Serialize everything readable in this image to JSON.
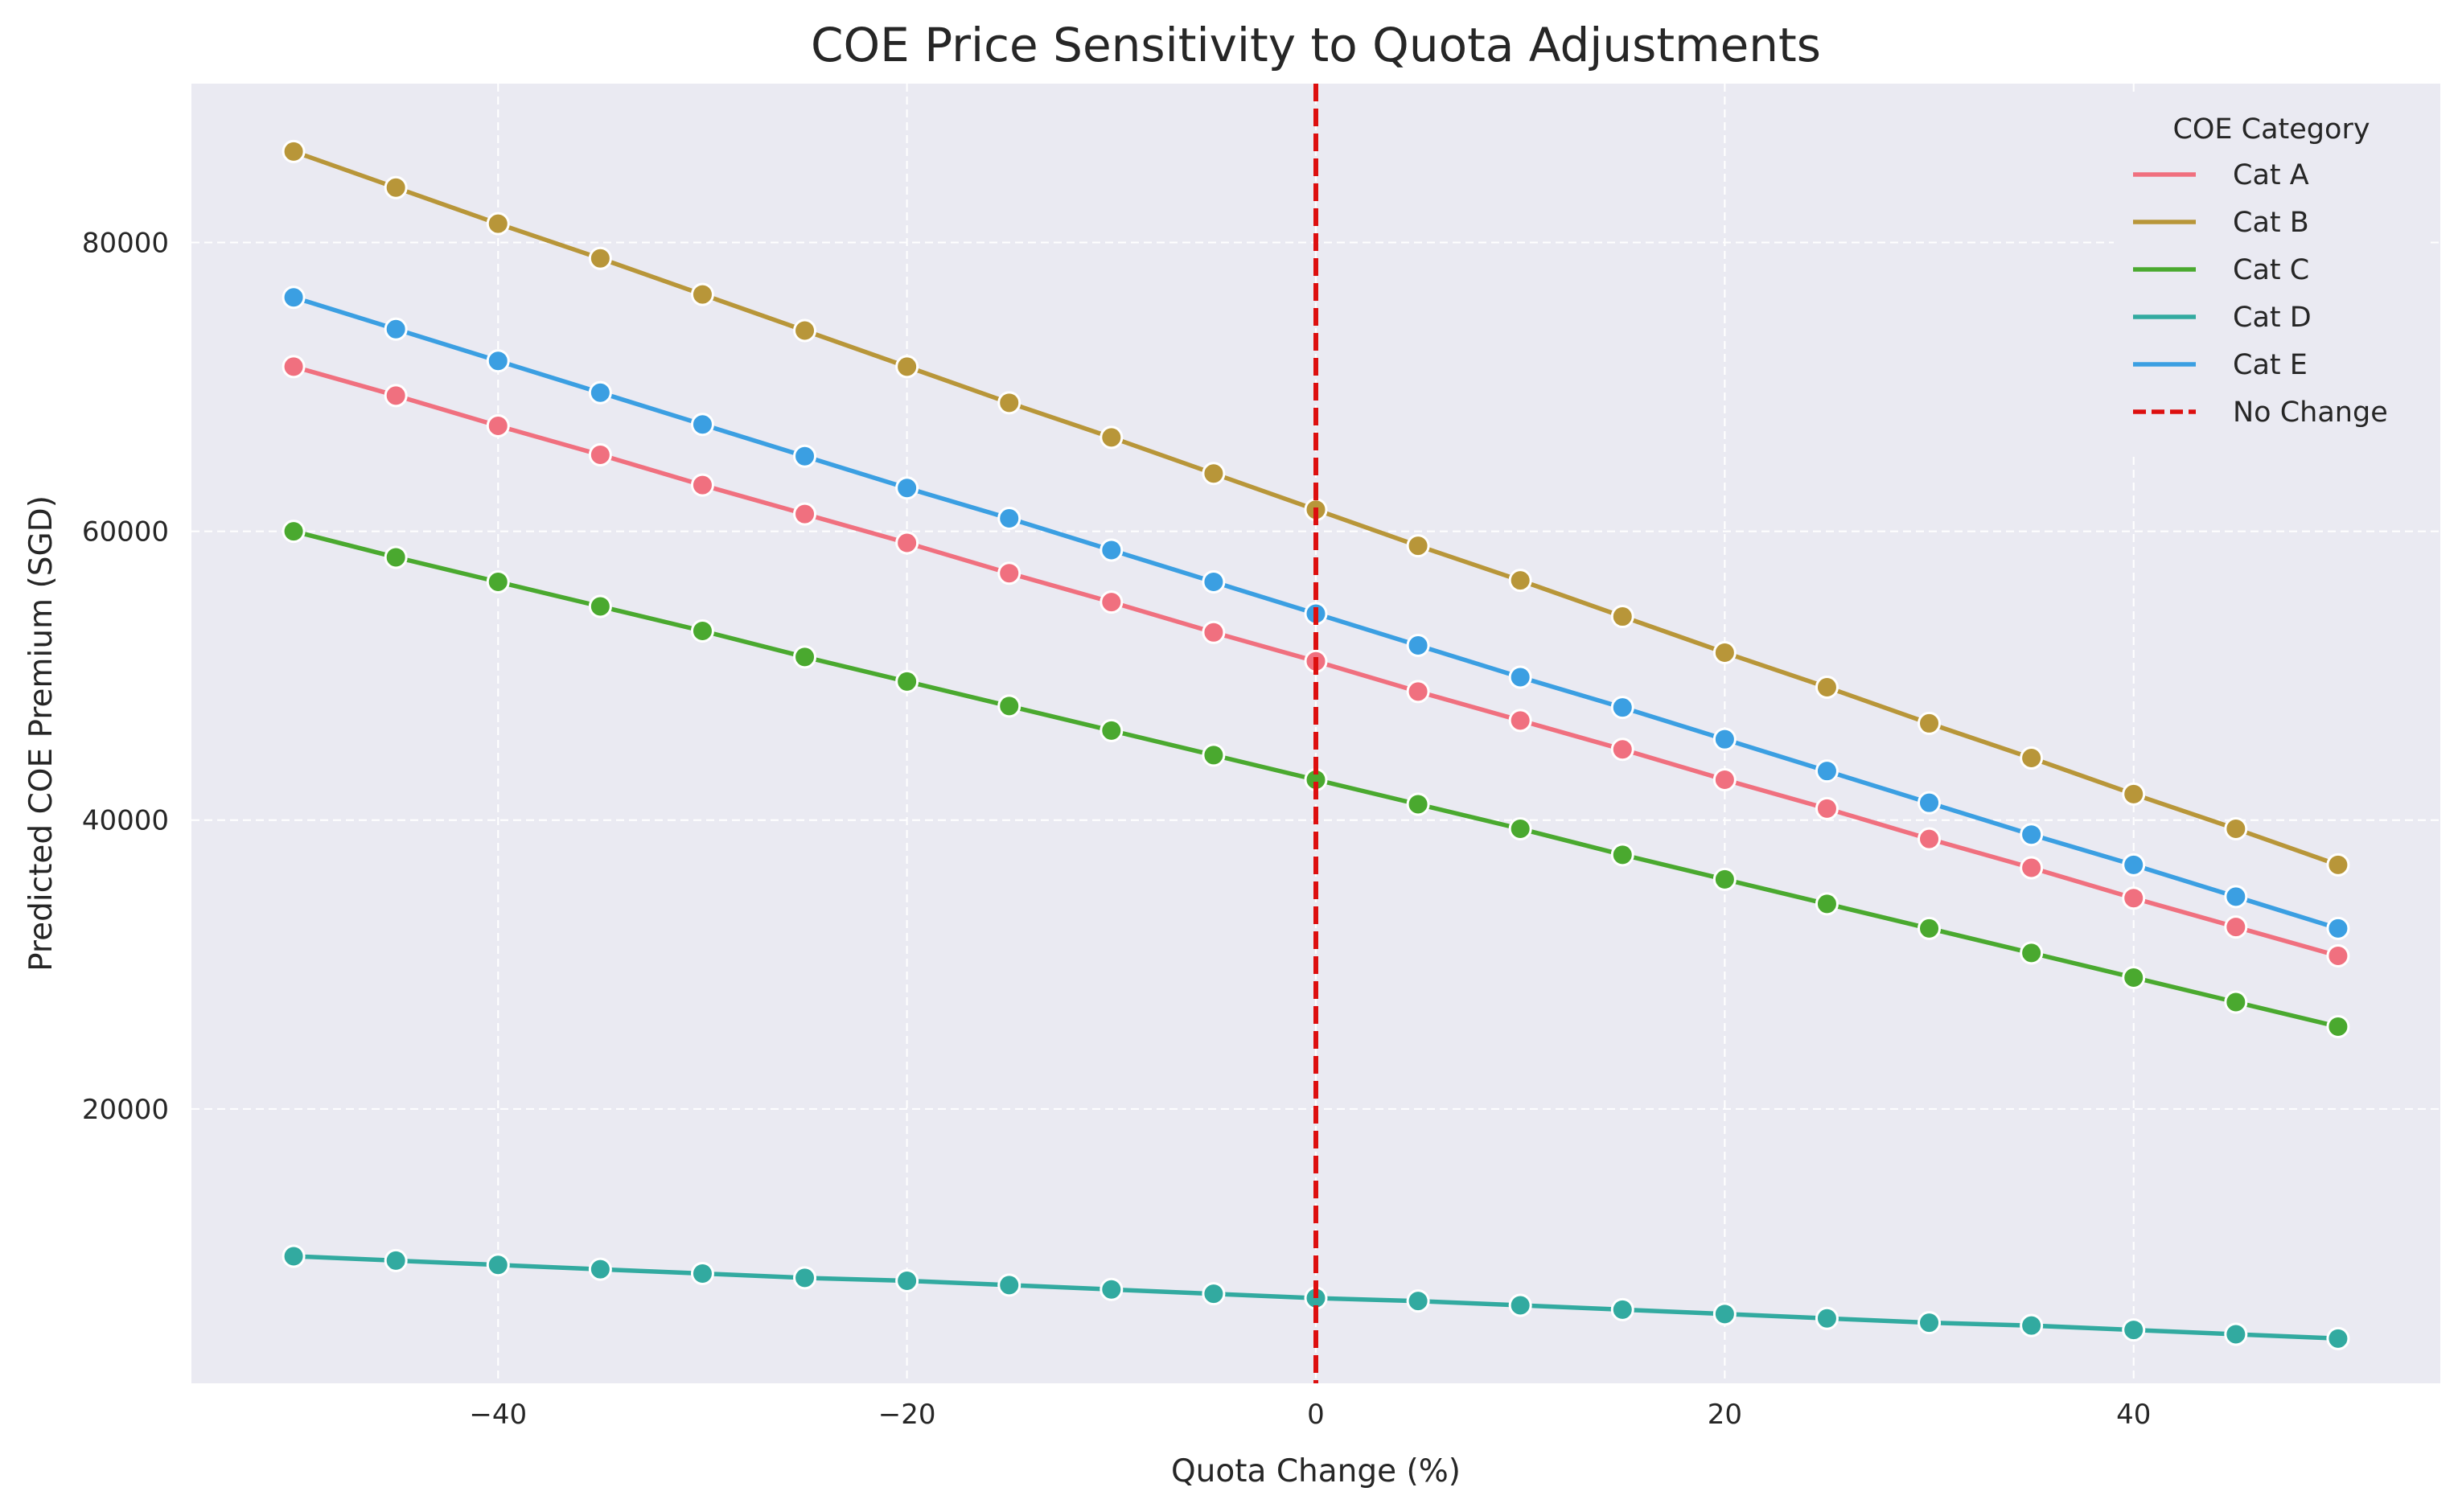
{
  "chart_data": {
    "type": "line",
    "title": "COE Price Sensitivity to Quota Adjustments",
    "xlabel": "Quota Change (%)",
    "ylabel": "Predicted COE Premium (SGD)",
    "xlim": [
      -55,
      55
    ],
    "ylim": [
      1000,
      91000
    ],
    "xticks": [
      -40,
      -20,
      0,
      20,
      40
    ],
    "yticks": [
      20000,
      40000,
      60000,
      80000
    ],
    "xtick_labels": [
      "−40",
      "−20",
      "0",
      "20",
      "40"
    ],
    "ytick_labels": [
      "20000",
      "40000",
      "60000",
      "80000"
    ],
    "grid": true,
    "legend": {
      "title": "COE Category",
      "placement": "top-right"
    },
    "x": [
      -50,
      -45,
      -40,
      -35,
      -30,
      -25,
      -20,
      -15,
      -10,
      -5,
      0,
      5,
      10,
      15,
      20,
      25,
      30,
      35,
      40,
      45,
      50
    ],
    "series": [
      {
        "name": "Cat A",
        "color": "#f0707f",
        "values": [
          71400,
          69400,
          67300,
          65300,
          63200,
          61200,
          59200,
          57100,
          55100,
          53000,
          51000,
          48900,
          46900,
          44900,
          42800,
          40800,
          38700,
          36700,
          34600,
          32600,
          30600
        ]
      },
      {
        "name": "Cat B",
        "color": "#b89639",
        "values": [
          86300,
          83800,
          81300,
          78900,
          76400,
          73900,
          71400,
          68900,
          66500,
          64000,
          61500,
          59000,
          56600,
          54100,
          51600,
          49200,
          46700,
          44300,
          41800,
          39400,
          36900
        ]
      },
      {
        "name": "Cat C",
        "color": "#4aa92f",
        "values": [
          60000,
          58200,
          56500,
          54800,
          53100,
          51300,
          49600,
          47900,
          46200,
          44500,
          42800,
          41100,
          39400,
          37600,
          35900,
          34200,
          32500,
          30800,
          29100,
          27400,
          25700
        ]
      },
      {
        "name": "Cat D",
        "color": "#32aaa0",
        "values": [
          9800,
          9500,
          9200,
          8900,
          8600,
          8300,
          8100,
          7800,
          7500,
          7200,
          6900,
          6700,
          6400,
          6100,
          5800,
          5500,
          5200,
          5000,
          4700,
          4400,
          4100
        ]
      },
      {
        "name": "Cat E",
        "color": "#3b9fe2",
        "values": [
          76200,
          74000,
          71800,
          69600,
          67400,
          65200,
          63000,
          60900,
          58700,
          56500,
          54300,
          52100,
          49900,
          47800,
          45600,
          43400,
          41200,
          39000,
          36900,
          34700,
          32500
        ]
      }
    ],
    "reference_line": {
      "name": "No Change",
      "x": 0,
      "color": "#dd0f0f",
      "style": "dashed"
    }
  }
}
